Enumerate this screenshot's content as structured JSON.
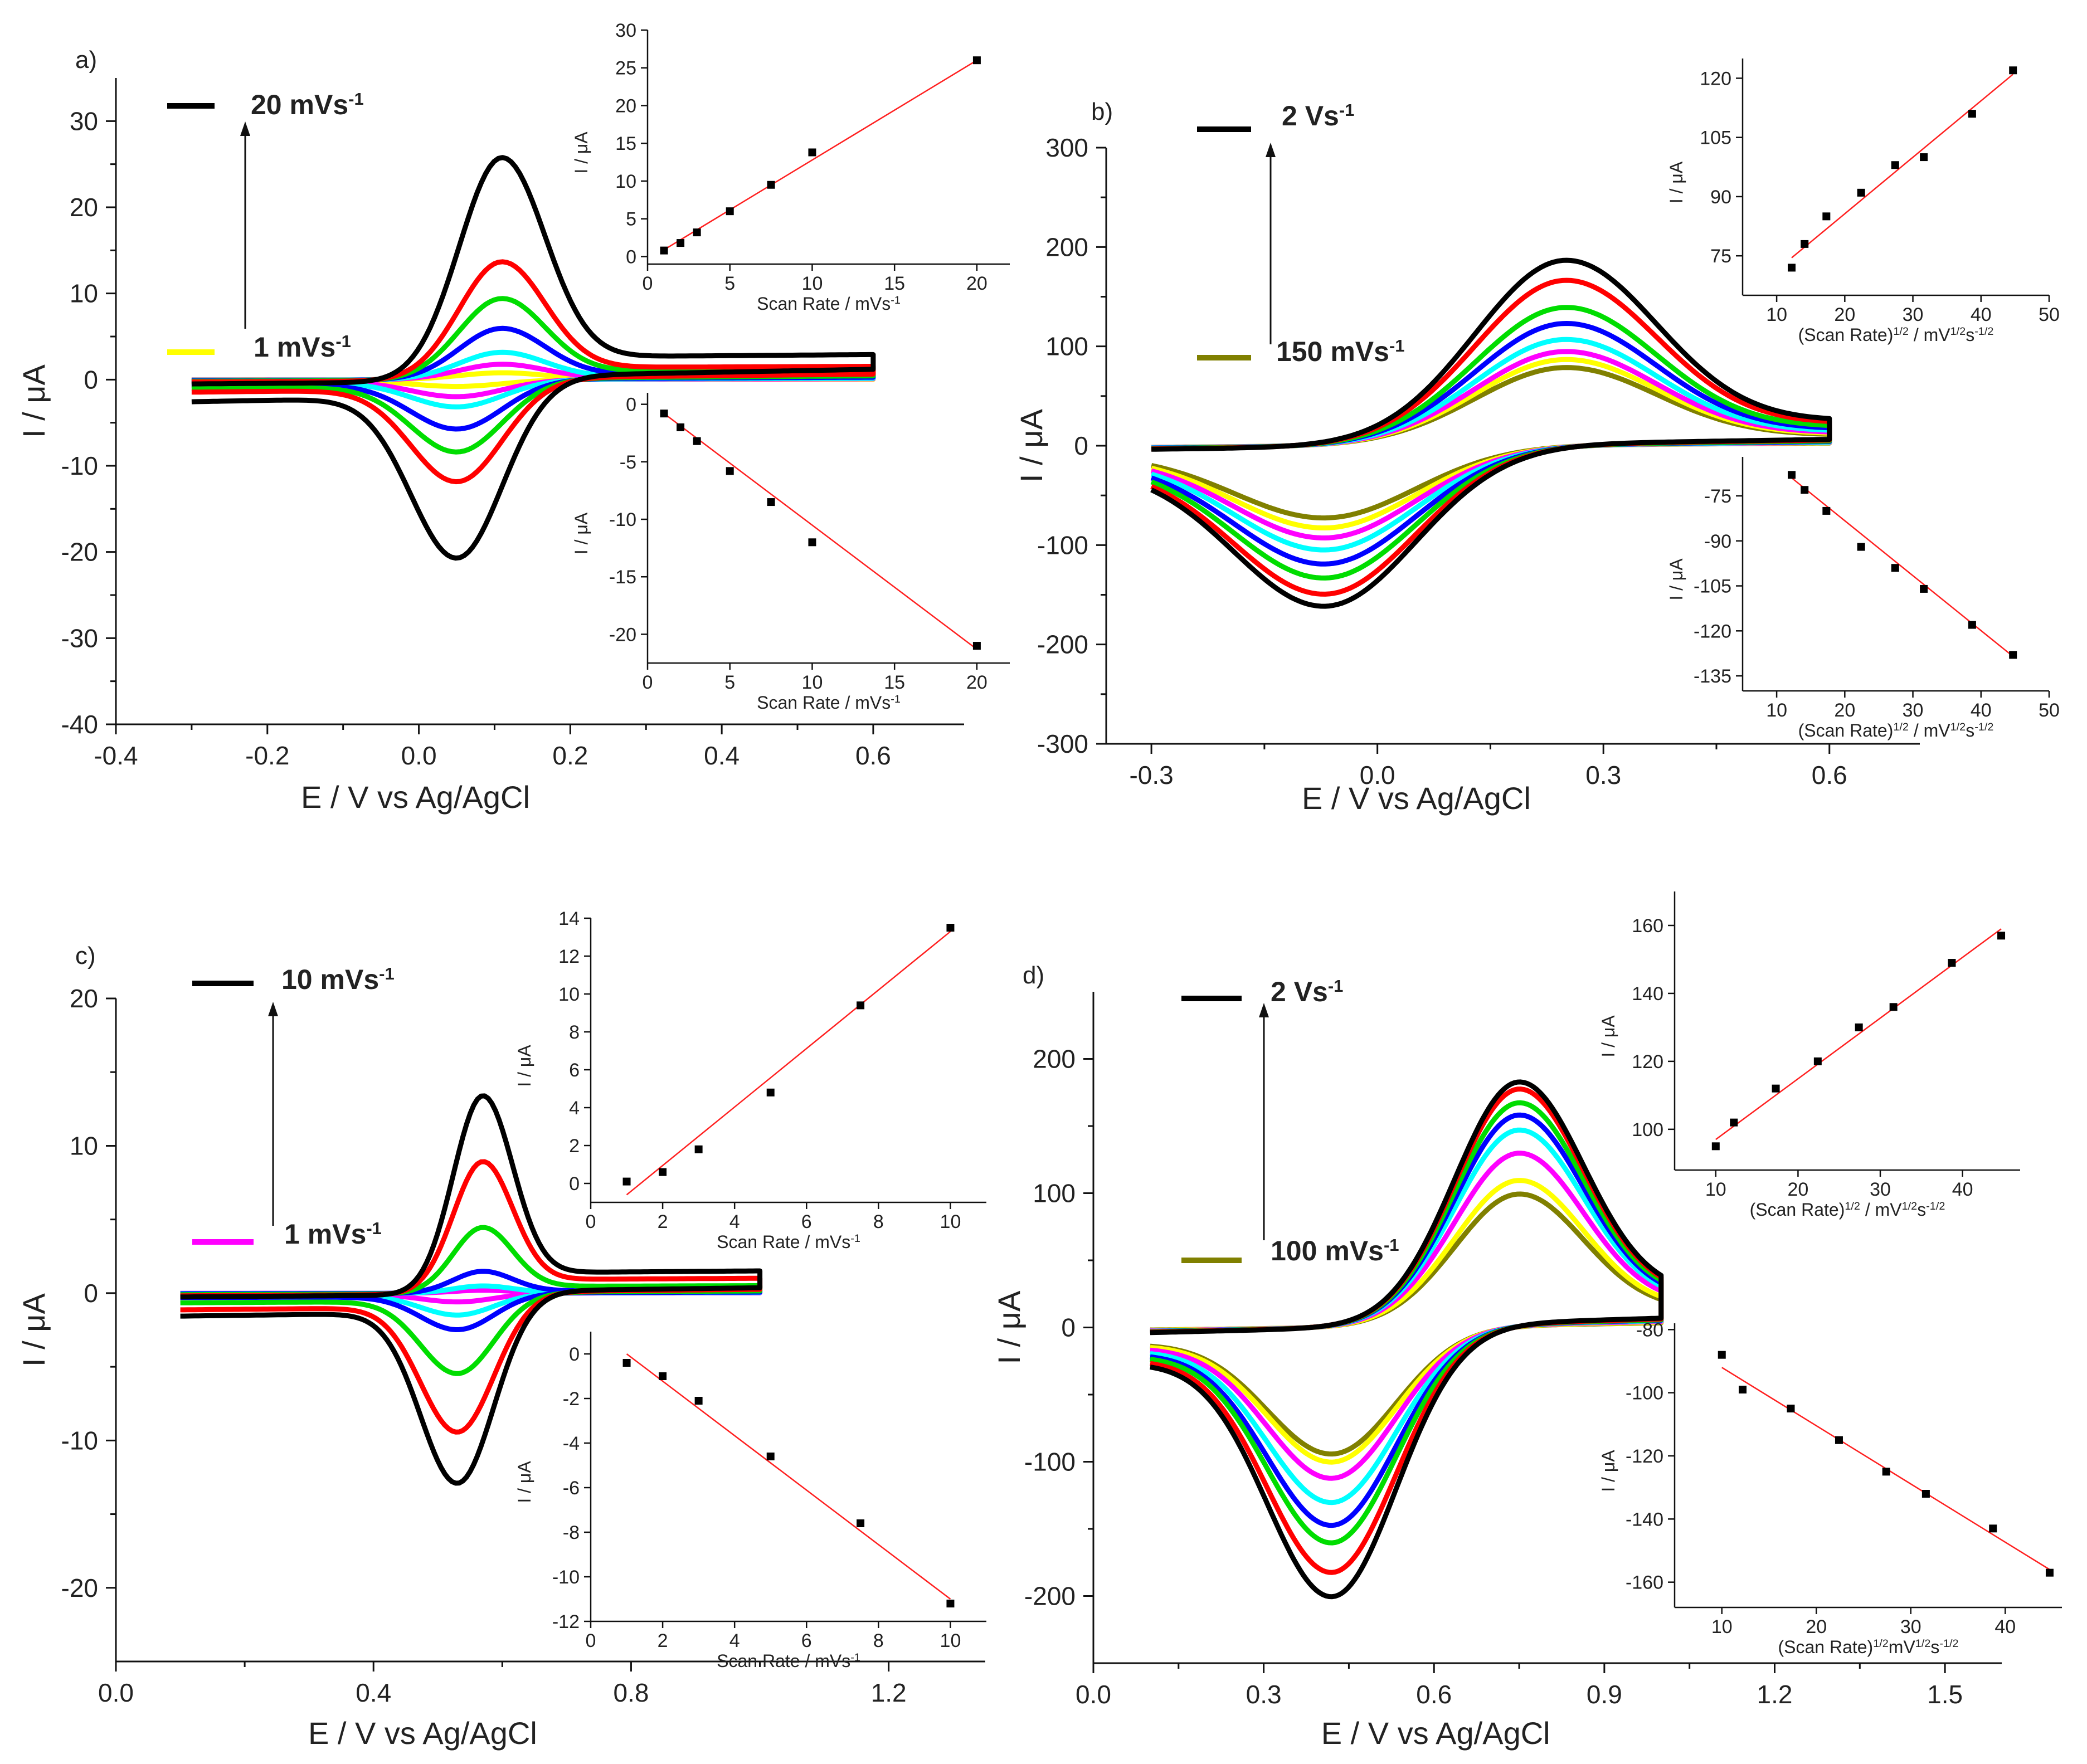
{
  "chart_data": [
    {
      "type": "line",
      "panel": "a)",
      "xlabel": "E / V vs Ag/AgCl",
      "ylabel": "I / μA",
      "xlim": [
        -0.4,
        0.72
      ],
      "ylim": [
        -40,
        35
      ],
      "xticks": [
        "-0.4",
        "-0.2",
        "0.0",
        "0.2",
        "0.4",
        "0.6"
      ],
      "xtick_values": [
        -0.4,
        -0.2,
        0.0,
        0.2,
        0.4,
        0.6
      ],
      "yticks": [
        "-40",
        "-30",
        "-20",
        "-10",
        "0",
        "10",
        "20",
        "30"
      ],
      "ytick_values": [
        -40,
        -30,
        -20,
        -10,
        0,
        10,
        20,
        30
      ],
      "legend": [
        {
          "label": "20 mVs",
          "sup": "-1",
          "color": "#000000"
        },
        {
          "label": "1 mVs",
          "sup": "-1",
          "color": "#ffff00"
        }
      ],
      "cv_shape": {
        "E_start": -0.3,
        "E_end": 0.6,
        "Epa": 0.11,
        "Epc": 0.05,
        "width_a": 0.08,
        "width_c": 0.085,
        "base_start": -0.5,
        "base_end": 1.5,
        "cap": 1.0
      },
      "series": [
        {
          "name": "20 mVs-1",
          "color": "#000000",
          "Ipa": 26.0,
          "Ipc": -21.0
        },
        {
          "name": "red",
          "color": "#ff0000",
          "Ipa": 13.8,
          "Ipc": -12.0
        },
        {
          "name": "green",
          "color": "#00dd00",
          "Ipa": 9.5,
          "Ipc": -8.5
        },
        {
          "name": "blue",
          "color": "#0000ff",
          "Ipa": 6.0,
          "Ipc": -5.8
        },
        {
          "name": "cyan",
          "color": "#00ffff",
          "Ipa": 3.2,
          "Ipc": -3.2
        },
        {
          "name": "magenta",
          "color": "#ff00ff",
          "Ipa": 1.8,
          "Ipc": -2.0
        },
        {
          "name": "1 mVs-1",
          "color": "#ffff00",
          "Ipa": 0.8,
          "Ipc": -0.8
        }
      ],
      "insets": [
        {
          "position": "top",
          "xlabel": "Scan Rate / mVs",
          "xlabel_sup": "-1",
          "ylabel": "I / μA",
          "xlim": [
            0,
            22
          ],
          "ylim": [
            -1,
            30
          ],
          "xticks": [
            0,
            5,
            10,
            15,
            20
          ],
          "yticks": [
            0,
            5,
            10,
            15,
            20,
            25,
            30
          ],
          "x": [
            1,
            2,
            3,
            5,
            7.5,
            10,
            20
          ],
          "y": [
            0.8,
            1.8,
            3.2,
            6.0,
            9.5,
            13.8,
            26.0
          ],
          "fit": [
            [
              1,
              0.9
            ],
            [
              20,
              26.0
            ]
          ]
        },
        {
          "position": "bottom",
          "xlabel": "Scan Rate / mVs",
          "xlabel_sup": "-1",
          "ylabel": "I / μA",
          "xlim": [
            0,
            22
          ],
          "ylim": [
            -22.5,
            1
          ],
          "xticks": [
            0,
            5,
            10,
            15,
            20
          ],
          "yticks": [
            0,
            -5,
            -10,
            -15,
            -20
          ],
          "x": [
            1,
            2,
            3,
            5,
            7.5,
            10,
            20
          ],
          "y": [
            -0.8,
            -2.0,
            -3.2,
            -5.8,
            -8.5,
            -12.0,
            -21.0
          ],
          "fit": [
            [
              1,
              -0.8
            ],
            [
              20,
              -21.3
            ]
          ]
        }
      ]
    },
    {
      "type": "line",
      "panel": "b)",
      "xlabel": "E / V vs Ag/AgCl",
      "ylabel": "I / μA",
      "xlim": [
        -0.36,
        0.72
      ],
      "ylim": [
        -300,
        300
      ],
      "xticks": [
        "-0.3",
        "0.0",
        "0.3",
        "0.6"
      ],
      "xtick_values": [
        -0.3,
        0.0,
        0.3,
        0.6
      ],
      "yticks": [
        "-300",
        "-200",
        "-100",
        "0",
        "100",
        "200",
        "300"
      ],
      "ytick_values": [
        -300,
        -200,
        -100,
        0,
        100,
        200,
        300
      ],
      "legend": [
        {
          "label": "2 Vs",
          "sup": "-1",
          "color": "#000000"
        },
        {
          "label": "150 mVs",
          "sup": "-1",
          "color": "#808000"
        }
      ],
      "cv_shape": {
        "E_start": -0.3,
        "E_end": 0.6,
        "Epa": 0.25,
        "Epc": -0.07,
        "width_a": 0.17,
        "width_c": 0.17,
        "base_start": -0.5,
        "base_end": 1.5,
        "cap": 2.0
      },
      "series": [
        {
          "name": "2 Vs-1",
          "color": "#000000",
          "Ipa": 185,
          "Ipc": -160
        },
        {
          "name": "red",
          "color": "#ff0000",
          "Ipa": 165,
          "Ipc": -148
        },
        {
          "name": "green",
          "color": "#00dd00",
          "Ipa": 138,
          "Ipc": -132
        },
        {
          "name": "blue",
          "color": "#0000ff",
          "Ipa": 122,
          "Ipc": -118
        },
        {
          "name": "cyan",
          "color": "#00ffff",
          "Ipa": 106,
          "Ipc": -104
        },
        {
          "name": "magenta",
          "color": "#ff00ff",
          "Ipa": 94,
          "Ipc": -92
        },
        {
          "name": "yellow",
          "color": "#ffff00",
          "Ipa": 86,
          "Ipc": -82
        },
        {
          "name": "150 mVs-1",
          "color": "#808000",
          "Ipa": 78,
          "Ipc": -72
        }
      ],
      "insets": [
        {
          "position": "top",
          "xlabel": "(Scan Rate)",
          "xlabel_sup": "1/2",
          "xlabel_tail": " / mV",
          "xlabel_sup2": "1/2",
          "xlabel_tail2": "s",
          "xlabel_sup3": "-1/2",
          "ylabel": "I / μA",
          "xlim": [
            5,
            50
          ],
          "ylim": [
            65,
            125
          ],
          "xticks": [
            10,
            20,
            30,
            40,
            50
          ],
          "yticks": [
            75,
            90,
            105,
            120
          ],
          "x": [
            12.2,
            14.1,
            17.3,
            22.4,
            27.4,
            31.6,
            38.7,
            44.7
          ],
          "y": [
            72,
            78,
            85,
            91,
            98,
            100,
            111,
            122
          ],
          "fit": [
            [
              12.2,
              74.5
            ],
            [
              44.7,
              121
            ]
          ]
        },
        {
          "position": "bottom",
          "xlabel": "(Scan Rate)",
          "xlabel_sup": "1/2",
          "xlabel_tail": " / mV",
          "xlabel_sup2": "1/2",
          "xlabel_tail2": "s",
          "xlabel_sup3": "-1/2",
          "ylabel": "I / μA",
          "xlim": [
            5,
            50
          ],
          "ylim": [
            -140,
            -62
          ],
          "xticks": [
            10,
            20,
            30,
            40,
            50
          ],
          "yticks": [
            -75,
            -90,
            -105,
            -120,
            -135
          ],
          "x": [
            12.2,
            14.1,
            17.3,
            22.4,
            27.4,
            31.6,
            38.7,
            44.7
          ],
          "y": [
            -68,
            -73,
            -80,
            -92,
            -99,
            -106,
            -118,
            -128
          ],
          "fit": [
            [
              12.2,
              -69
            ],
            [
              44.7,
              -128.5
            ]
          ]
        }
      ]
    },
    {
      "type": "line",
      "panel": "c)",
      "xlabel": "E / V vs Ag/AgCl",
      "ylabel": "I / μA",
      "xlim": [
        0.0,
        1.35
      ],
      "ylim": [
        -25,
        20
      ],
      "xticks": [
        "0.0",
        "0.4",
        "0.8",
        "1.2"
      ],
      "xtick_values": [
        0.0,
        0.4,
        0.8,
        1.2
      ],
      "yticks": [
        "-20",
        "-10",
        "0",
        "10",
        "20"
      ],
      "ytick_values": [
        -20,
        -10,
        0,
        10,
        20
      ],
      "legend": [
        {
          "label": "10 mVs",
          "sup": "-1",
          "color": "#000000"
        },
        {
          "label": "1 mVs",
          "sup": "-1",
          "color": "#ff00ff"
        }
      ],
      "cv_shape": {
        "E_start": 0.1,
        "E_end": 1.0,
        "Epa": 0.57,
        "Epc": 0.53,
        "width_a": 0.065,
        "width_c": 0.08,
        "base_start": -0.5,
        "base_end": 1.0,
        "cap": 1.0
      },
      "series": [
        {
          "name": "10 mVs-1",
          "color": "#000000",
          "Ipa": 13.5,
          "Ipc": -13.0
        },
        {
          "name": "red",
          "color": "#ff0000",
          "Ipa": 9.0,
          "Ipc": -9.5
        },
        {
          "name": "green",
          "color": "#00dd00",
          "Ipa": 4.5,
          "Ipc": -5.5
        },
        {
          "name": "blue",
          "color": "#0000ff",
          "Ipa": 1.5,
          "Ipc": -2.5
        },
        {
          "name": "cyan",
          "color": "#00ffff",
          "Ipa": 0.5,
          "Ipc": -1.5
        },
        {
          "name": "1 mVs-1",
          "color": "#ff00ff",
          "Ipa": 0.2,
          "Ipc": -0.6
        }
      ],
      "insets": [
        {
          "position": "top",
          "xlabel": "Scan Rate / mVs",
          "xlabel_sup": "-1",
          "ylabel": "I / μA",
          "xlim": [
            0,
            11
          ],
          "ylim": [
            -1,
            14
          ],
          "xticks": [
            0,
            2,
            4,
            6,
            8,
            10
          ],
          "yticks": [
            0,
            2,
            4,
            6,
            8,
            10,
            12,
            14
          ],
          "x": [
            1,
            2,
            3,
            5,
            7.5,
            10
          ],
          "y": [
            0.1,
            0.6,
            1.8,
            4.8,
            9.4,
            13.5
          ],
          "fit": [
            [
              1,
              -0.6
            ],
            [
              10,
              13.3
            ]
          ]
        },
        {
          "position": "bottom",
          "xlabel": "Scan Rate / mVs",
          "xlabel_sup": "-1",
          "ylabel": "I / μA",
          "xlim": [
            0,
            11
          ],
          "ylim": [
            -12,
            1
          ],
          "xticks": [
            0,
            2,
            4,
            6,
            8,
            10
          ],
          "yticks": [
            0,
            -2,
            -4,
            -6,
            -8,
            -10,
            -12
          ],
          "x": [
            1,
            2,
            3,
            5,
            7.5,
            10
          ],
          "y": [
            -0.4,
            -1.0,
            -2.1,
            -4.6,
            -7.6,
            -11.2
          ],
          "fit": [
            [
              1,
              0.0
            ],
            [
              10,
              -11.0
            ]
          ]
        }
      ]
    },
    {
      "type": "line",
      "panel": "d)",
      "xlabel": "E / V vs Ag/AgCl",
      "ylabel": "I / μA",
      "xlim": [
        0.0,
        1.6
      ],
      "ylim": [
        -250,
        250
      ],
      "xticks": [
        "0.0",
        "0.3",
        "0.6",
        "0.9",
        "1.2",
        "1.5"
      ],
      "xtick_values": [
        0.0,
        0.3,
        0.6,
        0.9,
        1.2,
        1.5
      ],
      "yticks": [
        "-200",
        "-100",
        "0",
        "100",
        "200"
      ],
      "ytick_values": [
        -200,
        -100,
        0,
        100,
        200
      ],
      "legend": [
        {
          "label": "2 Vs",
          "sup": "-1",
          "color": "#000000"
        },
        {
          "label": "100 mVs",
          "sup": "-1",
          "color": "#808000"
        }
      ],
      "cv_shape": {
        "E_start": 0.1,
        "E_end": 1.0,
        "Epa": 0.75,
        "Epc": 0.42,
        "width_a": 0.16,
        "width_c": 0.16,
        "base_start": -0.5,
        "base_end": 1.5,
        "cap": 2.0
      },
      "series": [
        {
          "name": "2 Vs-1",
          "color": "#000000",
          "Ipa": 180,
          "Ipc": -200
        },
        {
          "name": "red",
          "color": "#ff0000",
          "Ipa": 175,
          "Ipc": -182
        },
        {
          "name": "green",
          "color": "#00dd00",
          "Ipa": 165,
          "Ipc": -160
        },
        {
          "name": "blue",
          "color": "#0000ff",
          "Ipa": 156,
          "Ipc": -147
        },
        {
          "name": "cyan",
          "color": "#00ffff",
          "Ipa": 145,
          "Ipc": -130
        },
        {
          "name": "magenta",
          "color": "#ff00ff",
          "Ipa": 128,
          "Ipc": -112
        },
        {
          "name": "yellow",
          "color": "#ffff00",
          "Ipa": 108,
          "Ipc": -100
        },
        {
          "name": "100 mVs-1",
          "color": "#808000",
          "Ipa": 98,
          "Ipc": -94
        }
      ],
      "insets": [
        {
          "position": "top",
          "xlabel": "(Scan Rate)",
          "xlabel_sup": "1/2",
          "xlabel_tail": " / mV",
          "xlabel_sup2": "1/2",
          "xlabel_tail2": "s",
          "xlabel_sup3": "-1/2",
          "ylabel": "I / μA",
          "xlim": [
            5,
            47
          ],
          "ylim": [
            88,
            170
          ],
          "xticks": [
            10,
            20,
            30,
            40
          ],
          "yticks": [
            100,
            120,
            140,
            160
          ],
          "x": [
            10,
            12.2,
            17.3,
            22.4,
            27.4,
            31.6,
            38.7,
            44.7
          ],
          "y": [
            95,
            102,
            112,
            120,
            130,
            136,
            149,
            157
          ],
          "fit": [
            [
              10,
              97
            ],
            [
              44.7,
              159
            ]
          ]
        },
        {
          "position": "bottom",
          "xlabel": "(Scan Rate)",
          "xlabel_sup": "1/2",
          "xlabel_tail": "mV",
          "xlabel_sup2": "1/2",
          "xlabel_tail2": "s",
          "xlabel_sup3": "-1/2",
          "ylabel": "I / μA",
          "xlim": [
            5,
            46
          ],
          "ylim": [
            -168,
            -78
          ],
          "xticks": [
            10,
            20,
            30,
            40
          ],
          "yticks": [
            -80,
            -100,
            -120,
            -140,
            -160
          ],
          "x": [
            10,
            12.2,
            17.3,
            22.4,
            27.4,
            31.6,
            38.7,
            44.7
          ],
          "y": [
            -88,
            -99,
            -105,
            -115,
            -125,
            -132,
            -143,
            -157
          ],
          "fit": [
            [
              10,
              -92
            ],
            [
              44.7,
              -156
            ]
          ]
        }
      ]
    }
  ]
}
